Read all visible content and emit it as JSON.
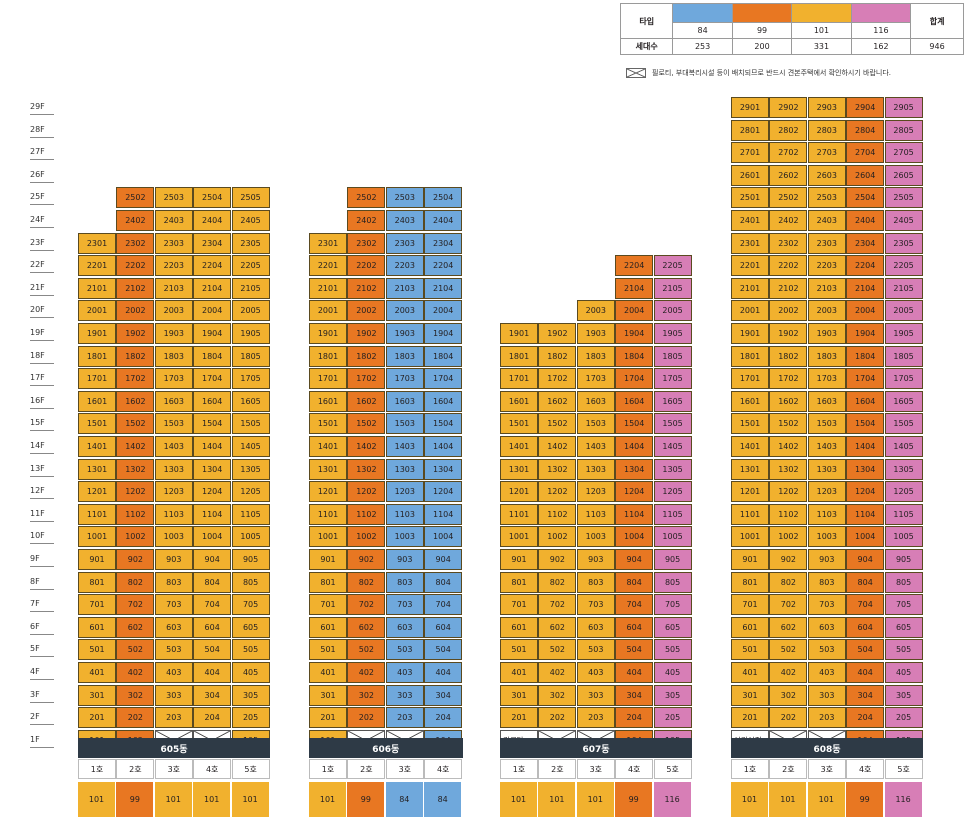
{
  "colors": {
    "84": "#6fa8dc",
    "99": "#e87722",
    "101": "#f1b12e",
    "116": "#d77eb6"
  },
  "legend": {
    "type_label": "타입",
    "count_label": "세대수",
    "total_label": "합계",
    "types": [
      "84",
      "99",
      "101",
      "116"
    ],
    "counts": [
      "253",
      "200",
      "331",
      "162"
    ],
    "total": "946"
  },
  "note": "필로티, 부대복리시설 등이 배치되므로 반드시 견본주택에서 확인하시기 바랍니다.",
  "floors": [
    "29F",
    "28F",
    "27F",
    "26F",
    "25F",
    "24F",
    "23F",
    "22F",
    "21F",
    "20F",
    "19F",
    "18F",
    "17F",
    "16F",
    "15F",
    "14F",
    "13F",
    "12F",
    "11F",
    "10F",
    "9F",
    "8F",
    "7F",
    "6F",
    "5F",
    "4F",
    "3F",
    "2F",
    "1F"
  ],
  "buildings": [
    {
      "name": "605동",
      "ho": [
        "1호",
        "2호",
        "3호",
        "4호",
        "5호"
      ],
      "types": [
        "101",
        "99",
        "101",
        "101",
        "101"
      ],
      "tops": [
        23,
        25,
        25,
        25,
        25
      ],
      "first_floor": [
        "unit",
        "unit",
        "piloti",
        "piloti",
        "unit"
      ],
      "facility": ""
    },
    {
      "name": "606동",
      "ho": [
        "1호",
        "2호",
        "3호",
        "4호"
      ],
      "types": [
        "101",
        "99",
        "84",
        "84"
      ],
      "tops": [
        23,
        25,
        25,
        25
      ],
      "first_floor": [
        "unit",
        "piloti",
        "piloti",
        "unit"
      ],
      "facility": ""
    },
    {
      "name": "607동",
      "ho": [
        "1호",
        "2호",
        "3호",
        "4호",
        "5호"
      ],
      "types": [
        "101",
        "101",
        "101",
        "99",
        "116"
      ],
      "tops": [
        19,
        19,
        20,
        22,
        22
      ],
      "first_floor": [
        "facility",
        "piloti",
        "piloti",
        "unit",
        "unit"
      ],
      "facility": "경로당"
    },
    {
      "name": "608동",
      "ho": [
        "1호",
        "2호",
        "3호",
        "4호",
        "5호"
      ],
      "types": [
        "101",
        "101",
        "101",
        "99",
        "116"
      ],
      "tops": [
        29,
        29,
        29,
        29,
        29
      ],
      "first_floor": [
        "facility",
        "piloti",
        "piloti",
        "unit",
        "unit"
      ],
      "facility": "어린이집"
    }
  ]
}
